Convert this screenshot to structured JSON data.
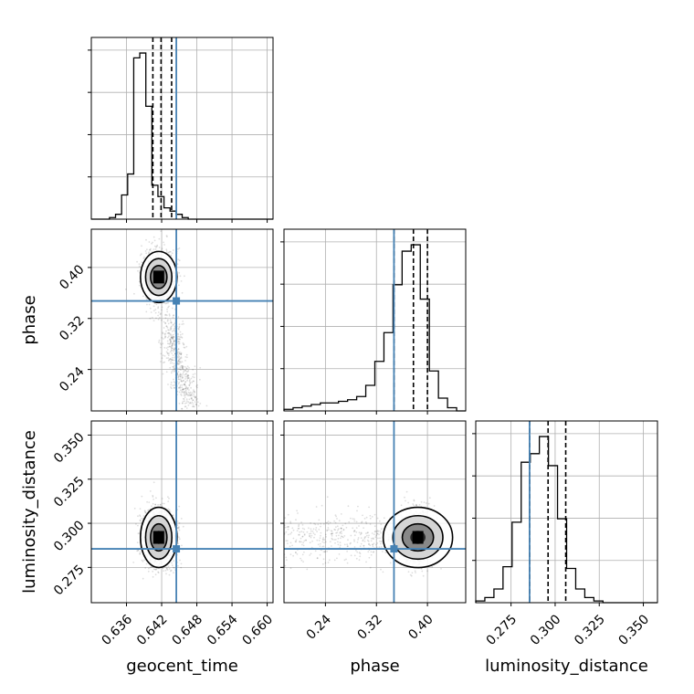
{
  "chart_data": {
    "type": "corner",
    "truth_color": "#4682b4",
    "parameters": [
      {
        "name": "geocent_time",
        "label": "geocent_time",
        "range": [
          0.63,
          0.661
        ],
        "ticks": [
          0.636,
          0.642,
          0.648,
          0.654,
          0.66
        ],
        "truth": 0.6445,
        "quantiles": [
          0.6405,
          0.6419,
          0.6437
        ]
      },
      {
        "name": "phase",
        "label": "phase",
        "range": [
          0.175,
          0.46
        ],
        "ticks": [
          0.24,
          0.32,
          0.4
        ],
        "truth": 0.3475,
        "quantiles": [
          0.3475,
          0.378,
          0.4
        ]
      },
      {
        "name": "luminosity_distance",
        "label": "luminosity_distance",
        "range": [
          0.255,
          0.358
        ],
        "ticks": [
          0.275,
          0.3,
          0.325,
          0.35
        ],
        "truth": 0.2855,
        "quantiles": [
          0.2855,
          0.296,
          0.306
        ]
      }
    ],
    "histograms": {
      "geocent_time": [
        0,
        0,
        0,
        1,
        3,
        15,
        28,
        100,
        103,
        70,
        21,
        14,
        7,
        5,
        3,
        1,
        0,
        0,
        0,
        0,
        0,
        0,
        0,
        0,
        0,
        0,
        0,
        0,
        0,
        0
      ],
      "phase": [
        1,
        2,
        3,
        4,
        5,
        5,
        6,
        7,
        9,
        16,
        31,
        49,
        79,
        100,
        104,
        70,
        25,
        8,
        2,
        0
      ],
      "luminosity_distance": [
        1,
        3,
        8,
        21,
        47,
        82,
        87,
        97,
        80,
        49,
        20,
        8,
        3,
        1,
        0,
        0,
        0,
        0,
        0,
        0
      ]
    },
    "modes": {
      "geocent_time": 0.6415,
      "phase": 0.385,
      "luminosity_distance": 0.292
    },
    "grid": true,
    "legend": "none"
  }
}
